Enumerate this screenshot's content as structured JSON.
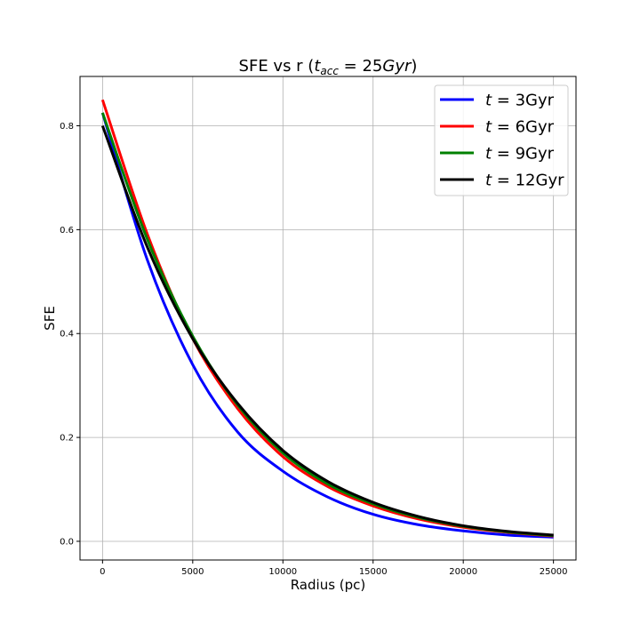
{
  "chart_data": {
    "type": "line",
    "title": "SFE vs r (t_acc = 25Gyr)",
    "title_parts": {
      "prefix": "SFE vs r (",
      "var": "t",
      "sub": "acc",
      "eq": " = 25",
      "unit_italic": "Gyr",
      "suffix": ")"
    },
    "xlabel": "Radius (pc)",
    "ylabel": "SFE",
    "xlim": [
      -1250,
      26250
    ],
    "ylim": [
      -0.036,
      0.895
    ],
    "xticks": [
      0,
      5000,
      10000,
      15000,
      20000,
      25000
    ],
    "yticks": [
      0.0,
      0.2,
      0.4,
      0.6,
      0.8
    ],
    "xtick_labels": [
      "0",
      "5000",
      "10000",
      "15000",
      "20000",
      "25000"
    ],
    "ytick_labels": [
      "0.0",
      "0.2",
      "0.4",
      "0.6",
      "0.8"
    ],
    "grid": true,
    "legend_position": "top-right",
    "x": [
      0,
      2500,
      5000,
      7500,
      10000,
      12500,
      15000,
      17500,
      20000,
      22500,
      25000
    ],
    "series": [
      {
        "name": "t = 3Gyr",
        "legend_var": "t",
        "legend_rest": " = 3Gyr",
        "color": "#0000ff",
        "values": [
          0.825,
          0.54,
          0.34,
          0.21,
          0.135,
          0.085,
          0.052,
          0.032,
          0.02,
          0.012,
          0.008
        ]
      },
      {
        "name": "t = 6Gyr",
        "legend_var": "t",
        "legend_rest": " = 6Gyr",
        "color": "#ff0000",
        "values": [
          0.85,
          0.59,
          0.39,
          0.255,
          0.163,
          0.105,
          0.068,
          0.043,
          0.027,
          0.017,
          0.01
        ]
      },
      {
        "name": "t = 9Gyr",
        "legend_var": "t",
        "legend_rest": " = 9Gyr",
        "color": "#008000",
        "values": [
          0.825,
          0.58,
          0.395,
          0.262,
          0.17,
          0.11,
          0.072,
          0.046,
          0.029,
          0.018,
          0.011
        ]
      },
      {
        "name": "t = 12Gyr",
        "legend_var": "t",
        "legend_rest": " = 12Gyr",
        "color": "#000000",
        "values": [
          0.8,
          0.565,
          0.39,
          0.265,
          0.175,
          0.115,
          0.075,
          0.048,
          0.03,
          0.019,
          0.012
        ]
      }
    ]
  }
}
